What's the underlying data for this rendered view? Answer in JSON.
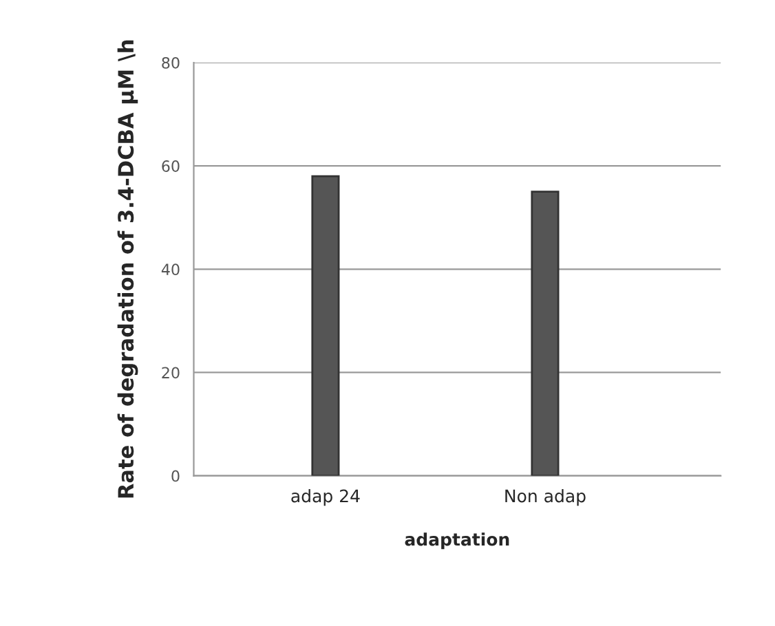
{
  "chart_data": {
    "type": "bar",
    "categories": [
      "adap 24",
      "Non adap"
    ],
    "values": [
      58,
      55
    ],
    "color": "#555555",
    "ylabel": "Rate of degradation of 3.4-DCBA µM \\h",
    "xlabel": "adaptation",
    "ylim": [
      0,
      80
    ],
    "yticks": [
      0,
      20,
      40,
      60,
      80
    ],
    "grid": "y"
  }
}
